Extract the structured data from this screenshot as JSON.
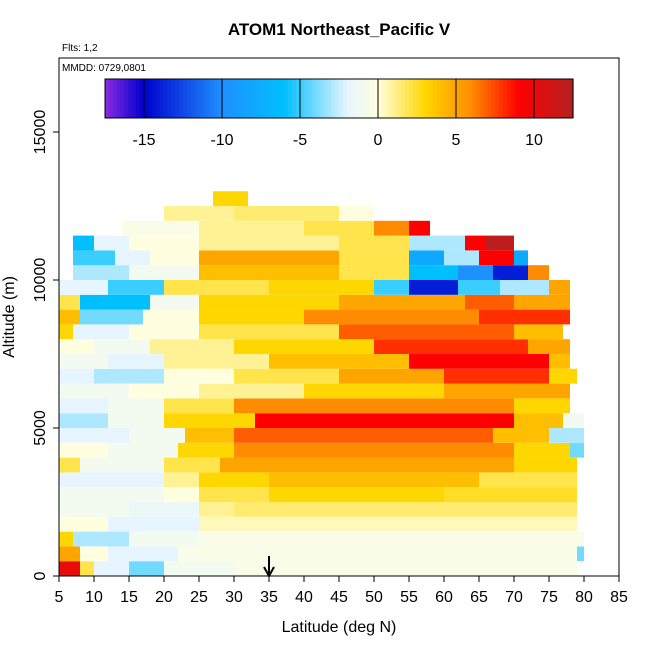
{
  "chart_data": {
    "type": "heatmap",
    "title": "ATOM1 Northeast_Pacific V",
    "subtitle_flights": "Flts: 1,2",
    "subtitle_dates": "MMDD: 0729,0801",
    "xlabel": "Latitude (deg N)",
    "ylabel": "Altitude (m)",
    "xlim": [
      5,
      85
    ],
    "ylim": [
      0,
      17500
    ],
    "x_ticks": [
      "5",
      "10",
      "15",
      "20",
      "25",
      "30",
      "35",
      "40",
      "45",
      "50",
      "55",
      "60",
      "65",
      "70",
      "75",
      "80",
      "85"
    ],
    "y_ticks": [
      "0",
      "5000",
      "10000",
      "15000"
    ],
    "colorbar": {
      "range": [
        -17.5,
        12.5
      ],
      "ticks": [
        "-15",
        "-10",
        "-5",
        "0",
        "5",
        "10"
      ],
      "tick_values": [
        -15,
        -10,
        -5,
        0,
        5,
        10
      ],
      "colors": [
        "#8a2be2",
        "#0000cd",
        "#1e90ff",
        "#00bfff",
        "#e6f5ff",
        "#ffffe0",
        "#ffd700",
        "#ff8c00",
        "#ff0000",
        "#b22222"
      ],
      "placement": "top-inside"
    },
    "arrow_marker_latitude": 35,
    "altitude_bins_m": [
      250,
      750,
      1250,
      1750,
      2250,
      2750,
      3250,
      3750,
      4250,
      4750,
      5250,
      5750,
      6250,
      6750,
      7250,
      7750,
      8250,
      8750,
      9250,
      9750,
      10250,
      10750,
      11250,
      11750,
      12250,
      12750
    ],
    "bands": [
      {
        "alt": 250,
        "segments": [
          [
            5,
            8,
            10
          ],
          [
            8,
            10,
            2
          ],
          [
            10,
            15,
            -2
          ],
          [
            15,
            20,
            -4
          ],
          [
            20,
            30,
            -1
          ],
          [
            30,
            79,
            -0.5
          ]
        ]
      },
      {
        "alt": 750,
        "segments": [
          [
            5,
            8,
            5
          ],
          [
            8,
            12,
            0
          ],
          [
            12,
            22,
            -2
          ],
          [
            22,
            79,
            -0.5
          ],
          [
            79,
            80,
            -4
          ]
        ]
      },
      {
        "alt": 1250,
        "segments": [
          [
            5,
            7,
            3
          ],
          [
            7,
            15,
            -3
          ],
          [
            15,
            25,
            -1
          ],
          [
            25,
            80,
            -0.5
          ]
        ]
      },
      {
        "alt": 1750,
        "segments": [
          [
            5,
            12,
            0
          ],
          [
            12,
            25,
            -2
          ],
          [
            25,
            79,
            0.5
          ]
        ]
      },
      {
        "alt": 2250,
        "segments": [
          [
            5,
            15,
            -1
          ],
          [
            15,
            25,
            -1.5
          ],
          [
            25,
            30,
            1
          ],
          [
            30,
            79,
            1.5
          ]
        ]
      },
      {
        "alt": 2750,
        "segments": [
          [
            5,
            20,
            -1
          ],
          [
            20,
            25,
            0
          ],
          [
            25,
            35,
            2
          ],
          [
            35,
            60,
            3
          ],
          [
            60,
            79,
            2.5
          ]
        ]
      },
      {
        "alt": 3250,
        "segments": [
          [
            5,
            20,
            -2
          ],
          [
            20,
            25,
            1
          ],
          [
            25,
            35,
            3
          ],
          [
            35,
            65,
            4
          ],
          [
            65,
            79,
            2
          ]
        ]
      },
      {
        "alt": 3750,
        "segments": [
          [
            5,
            8,
            2
          ],
          [
            8,
            20,
            -1
          ],
          [
            20,
            28,
            2
          ],
          [
            28,
            70,
            5
          ],
          [
            70,
            79,
            3
          ]
        ]
      },
      {
        "alt": 4250,
        "segments": [
          [
            5,
            12,
            0
          ],
          [
            12,
            22,
            -1
          ],
          [
            22,
            30,
            3
          ],
          [
            30,
            70,
            6
          ],
          [
            70,
            78,
            3
          ],
          [
            78,
            80,
            -4
          ]
        ]
      },
      {
        "alt": 4750,
        "segments": [
          [
            5,
            15,
            -2
          ],
          [
            15,
            23,
            -1
          ],
          [
            23,
            30,
            4
          ],
          [
            30,
            67,
            7
          ],
          [
            67,
            75,
            4
          ],
          [
            75,
            80,
            -3
          ]
        ]
      },
      {
        "alt": 5250,
        "segments": [
          [
            5,
            12,
            -3
          ],
          [
            12,
            20,
            -1
          ],
          [
            20,
            33,
            3
          ],
          [
            33,
            70,
            9
          ],
          [
            70,
            77,
            4
          ],
          [
            77,
            80,
            -1
          ]
        ]
      },
      {
        "alt": 5750,
        "segments": [
          [
            5,
            12,
            -2
          ],
          [
            12,
            20,
            -1
          ],
          [
            20,
            30,
            2
          ],
          [
            30,
            70,
            6
          ],
          [
            70,
            78,
            3
          ]
        ]
      },
      {
        "alt": 6250,
        "segments": [
          [
            5,
            15,
            -1
          ],
          [
            15,
            25,
            0
          ],
          [
            25,
            40,
            1
          ],
          [
            40,
            60,
            3
          ],
          [
            60,
            78,
            5
          ]
        ]
      },
      {
        "alt": 6750,
        "segments": [
          [
            5,
            10,
            -2
          ],
          [
            10,
            20,
            -3
          ],
          [
            20,
            30,
            0
          ],
          [
            30,
            45,
            2
          ],
          [
            45,
            60,
            5
          ],
          [
            60,
            75,
            8
          ],
          [
            75,
            79,
            3
          ]
        ]
      },
      {
        "alt": 7250,
        "segments": [
          [
            5,
            12,
            -1
          ],
          [
            12,
            20,
            -2
          ],
          [
            20,
            35,
            1
          ],
          [
            35,
            55,
            4
          ],
          [
            55,
            75,
            9
          ],
          [
            75,
            78,
            4
          ]
        ]
      },
      {
        "alt": 7750,
        "segments": [
          [
            5,
            10,
            0
          ],
          [
            10,
            18,
            -1
          ],
          [
            18,
            30,
            1
          ],
          [
            30,
            50,
            3
          ],
          [
            50,
            72,
            8
          ],
          [
            72,
            78,
            5
          ]
        ]
      },
      {
        "alt": 8250,
        "segments": [
          [
            5,
            7,
            3
          ],
          [
            7,
            15,
            -2
          ],
          [
            15,
            25,
            0
          ],
          [
            25,
            45,
            2
          ],
          [
            45,
            70,
            7
          ],
          [
            70,
            77,
            4
          ]
        ]
      },
      {
        "alt": 8750,
        "segments": [
          [
            5,
            8,
            4
          ],
          [
            8,
            17,
            -4
          ],
          [
            17,
            25,
            0
          ],
          [
            25,
            40,
            3
          ],
          [
            40,
            65,
            6
          ],
          [
            65,
            78,
            8
          ]
        ]
      },
      {
        "alt": 9250,
        "segments": [
          [
            5,
            8,
            2
          ],
          [
            8,
            18,
            -6
          ],
          [
            18,
            25,
            -1
          ],
          [
            25,
            45,
            3
          ],
          [
            45,
            63,
            5
          ],
          [
            63,
            70,
            7
          ],
          [
            70,
            78,
            5
          ]
        ]
      },
      {
        "alt": 9750,
        "segments": [
          [
            5,
            12,
            -2
          ],
          [
            12,
            20,
            -5
          ],
          [
            20,
            35,
            2
          ],
          [
            35,
            50,
            3
          ],
          [
            50,
            55,
            -5
          ],
          [
            55,
            62,
            -14
          ],
          [
            62,
            68,
            -5
          ],
          [
            68,
            75,
            -3
          ],
          [
            75,
            78,
            5
          ]
        ]
      },
      {
        "alt": 10250,
        "segments": [
          [
            7,
            15,
            -3
          ],
          [
            15,
            25,
            -1
          ],
          [
            25,
            45,
            4
          ],
          [
            45,
            55,
            2
          ],
          [
            55,
            62,
            -6
          ],
          [
            62,
            67,
            -10
          ],
          [
            67,
            72,
            -14
          ],
          [
            72,
            75,
            6
          ]
        ]
      },
      {
        "alt": 10750,
        "segments": [
          [
            7,
            13,
            -5
          ],
          [
            13,
            18,
            -2
          ],
          [
            18,
            25,
            0
          ],
          [
            25,
            45,
            5
          ],
          [
            45,
            55,
            2
          ],
          [
            55,
            60,
            -8
          ],
          [
            60,
            65,
            -3
          ],
          [
            65,
            70,
            9
          ],
          [
            70,
            72,
            -8
          ]
        ]
      },
      {
        "alt": 11250,
        "segments": [
          [
            7,
            10,
            -6
          ],
          [
            10,
            15,
            -2
          ],
          [
            15,
            25,
            0
          ],
          [
            25,
            45,
            1
          ],
          [
            45,
            55,
            2
          ],
          [
            55,
            63,
            -3
          ],
          [
            63,
            66,
            9
          ],
          [
            66,
            70,
            12
          ]
        ]
      },
      {
        "alt": 11750,
        "segments": [
          [
            14,
            25,
            -0.5
          ],
          [
            25,
            40,
            1
          ],
          [
            40,
            50,
            2
          ],
          [
            50,
            55,
            6
          ],
          [
            55,
            58,
            9
          ]
        ]
      },
      {
        "alt": 12250,
        "segments": [
          [
            20,
            30,
            1
          ],
          [
            30,
            45,
            1.5
          ],
          [
            45,
            50,
            0
          ]
        ]
      },
      {
        "alt": 12750,
        "segments": [
          [
            27,
            32,
            3
          ]
        ]
      }
    ]
  }
}
